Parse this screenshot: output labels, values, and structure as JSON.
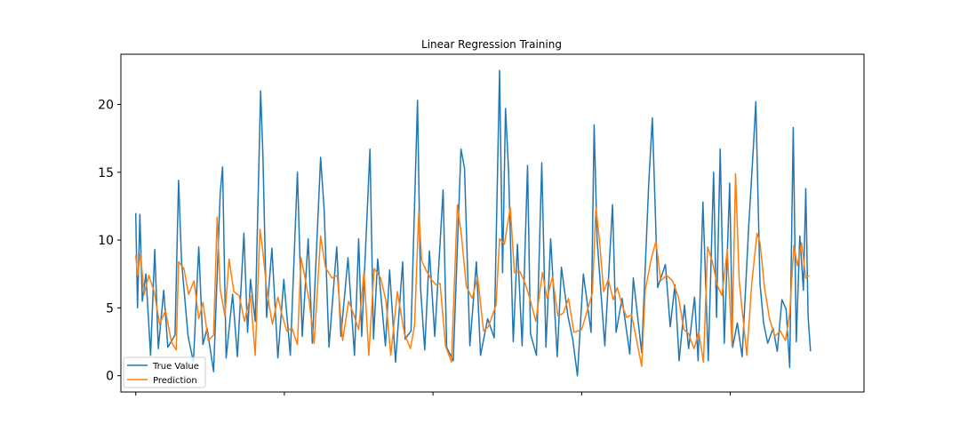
{
  "chart_data": {
    "type": "line",
    "title": "Linear Regression Training",
    "xlabel": "",
    "ylabel": "",
    "xlim": [
      -25,
      1225
    ],
    "ylim": [
      -1.2,
      23.7
    ],
    "yticks": [
      0,
      5,
      10,
      15,
      20
    ],
    "yticklabels": [
      "0",
      "5",
      "10",
      "15",
      "20"
    ],
    "xticks": [
      0,
      250,
      500,
      750,
      1000
    ],
    "xticklabels": [
      "",
      "",
      "",
      "",
      ""
    ],
    "grid": false,
    "legend_position": "lower-left",
    "series": [
      {
        "name": "True Value",
        "color": "#1f77b4",
        "keypoints": [
          [
            0,
            12.0
          ],
          [
            3,
            5.0
          ],
          [
            7,
            11.9
          ],
          [
            11,
            5.5
          ],
          [
            17,
            7.5
          ],
          [
            25,
            1.5
          ],
          [
            32,
            9.3
          ],
          [
            38,
            2.0
          ],
          [
            47,
            6.3
          ],
          [
            54,
            2.1
          ],
          [
            66,
            3.0
          ],
          [
            72,
            14.4
          ],
          [
            77,
            8.5
          ],
          [
            88,
            2.9
          ],
          [
            97,
            1.0
          ],
          [
            106,
            9.5
          ],
          [
            113,
            2.3
          ],
          [
            120,
            3.5
          ],
          [
            131,
            0.3
          ],
          [
            142,
            13.4
          ],
          [
            146,
            15.4
          ],
          [
            152,
            1.3
          ],
          [
            163,
            6.0
          ],
          [
            171,
            1.4
          ],
          [
            182,
            10.5
          ],
          [
            188,
            3.2
          ],
          [
            193,
            7.1
          ],
          [
            201,
            4.0
          ],
          [
            210,
            21.0
          ],
          [
            214,
            16.2
          ],
          [
            220,
            4.3
          ],
          [
            229,
            9.4
          ],
          [
            239,
            1.3
          ],
          [
            249,
            7.1
          ],
          [
            260,
            1.5
          ],
          [
            272,
            15.0
          ],
          [
            280,
            2.9
          ],
          [
            290,
            10.1
          ],
          [
            297,
            2.4
          ],
          [
            311,
            16.1
          ],
          [
            317,
            12.2
          ],
          [
            325,
            2.1
          ],
          [
            338,
            9.5
          ],
          [
            345,
            2.9
          ],
          [
            357,
            8.7
          ],
          [
            368,
            1.5
          ],
          [
            375,
            10.1
          ],
          [
            380,
            2.9
          ],
          [
            394,
            16.7
          ],
          [
            400,
            2.7
          ],
          [
            407,
            8.6
          ],
          [
            420,
            2.2
          ],
          [
            427,
            7.8
          ],
          [
            437,
            1.0
          ],
          [
            449,
            8.4
          ],
          [
            453,
            2.7
          ],
          [
            463,
            3.3
          ],
          [
            474,
            20.3
          ],
          [
            479,
            6.5
          ],
          [
            486,
            1.9
          ],
          [
            494,
            9.2
          ],
          [
            503,
            2.9
          ],
          [
            517,
            13.7
          ],
          [
            523,
            2.1
          ],
          [
            534,
            1.1
          ],
          [
            547,
            16.7
          ],
          [
            553,
            15.3
          ],
          [
            562,
            2.2
          ],
          [
            573,
            8.4
          ],
          [
            580,
            1.5
          ],
          [
            592,
            4.2
          ],
          [
            603,
            2.8
          ],
          [
            612,
            22.5
          ],
          [
            617,
            7.6
          ],
          [
            622,
            19.7
          ],
          [
            627,
            15.2
          ],
          [
            635,
            2.5
          ],
          [
            642,
            9.7
          ],
          [
            650,
            2.2
          ],
          [
            659,
            15.5
          ],
          [
            664,
            3.1
          ],
          [
            674,
            1.5
          ],
          [
            683,
            15.7
          ],
          [
            690,
            2.1
          ],
          [
            698,
            10.1
          ],
          [
            709,
            1.4
          ],
          [
            716,
            8.0
          ],
          [
            727,
            4.4
          ],
          [
            735,
            2.7
          ],
          [
            743,
            0.0
          ],
          [
            753,
            7.5
          ],
          [
            766,
            3.2
          ],
          [
            771,
            18.5
          ],
          [
            776,
            10.1
          ],
          [
            789,
            2.2
          ],
          [
            802,
            12.6
          ],
          [
            808,
            3.2
          ],
          [
            818,
            5.7
          ],
          [
            831,
            1.6
          ],
          [
            837,
            7.2
          ],
          [
            851,
            1.7
          ],
          [
            863,
            14.3
          ],
          [
            869,
            19.0
          ],
          [
            878,
            6.5
          ],
          [
            891,
            8.2
          ],
          [
            899,
            3.6
          ],
          [
            907,
            6.7
          ],
          [
            914,
            1.1
          ],
          [
            923,
            5.2
          ],
          [
            930,
            2.0
          ],
          [
            940,
            5.8
          ],
          [
            946,
            1.1
          ],
          [
            954,
            12.8
          ],
          [
            963,
            1.1
          ],
          [
            972,
            15.0
          ],
          [
            977,
            4.3
          ],
          [
            983,
            16.7
          ],
          [
            990,
            2.4
          ],
          [
            999,
            14.2
          ],
          [
            1004,
            2.1
          ],
          [
            1012,
            3.9
          ],
          [
            1020,
            1.4
          ],
          [
            1031,
            11.0
          ],
          [
            1039,
            16.9
          ],
          [
            1043,
            20.2
          ],
          [
            1050,
            6.8
          ],
          [
            1056,
            3.9
          ],
          [
            1063,
            2.4
          ],
          [
            1072,
            3.5
          ],
          [
            1079,
            1.8
          ],
          [
            1087,
            5.6
          ],
          [
            1094,
            4.9
          ],
          [
            1100,
            0.6
          ],
          [
            1106,
            18.3
          ],
          [
            1111,
            2.5
          ],
          [
            1117,
            10.3
          ],
          [
            1123,
            6.3
          ],
          [
            1127,
            13.8
          ],
          [
            1131,
            4.4
          ],
          [
            1135,
            1.8
          ]
        ]
      },
      {
        "name": "Prediction",
        "color": "#ff7f0e",
        "keypoints": [
          [
            0,
            8.9
          ],
          [
            3,
            7.4
          ],
          [
            8,
            9.0
          ],
          [
            14,
            6.0
          ],
          [
            22,
            7.4
          ],
          [
            31,
            6.2
          ],
          [
            40,
            3.8
          ],
          [
            50,
            4.8
          ],
          [
            60,
            2.5
          ],
          [
            68,
            1.9
          ],
          [
            72,
            8.4
          ],
          [
            81,
            7.9
          ],
          [
            89,
            6.0
          ],
          [
            98,
            7.0
          ],
          [
            106,
            4.2
          ],
          [
            113,
            5.4
          ],
          [
            122,
            2.6
          ],
          [
            131,
            3.0
          ],
          [
            137,
            11.7
          ],
          [
            142,
            6.4
          ],
          [
            150,
            4.4
          ],
          [
            157,
            8.6
          ],
          [
            165,
            6.2
          ],
          [
            174,
            5.9
          ],
          [
            183,
            4.0
          ],
          [
            193,
            5.9
          ],
          [
            201,
            1.5
          ],
          [
            209,
            10.8
          ],
          [
            214,
            9.1
          ],
          [
            221,
            6.1
          ],
          [
            230,
            3.8
          ],
          [
            239,
            5.8
          ],
          [
            246,
            4.5
          ],
          [
            254,
            3.3
          ],
          [
            263,
            3.5
          ],
          [
            272,
            2.3
          ],
          [
            278,
            8.7
          ],
          [
            284,
            7.4
          ],
          [
            292,
            5.4
          ],
          [
            300,
            2.4
          ],
          [
            311,
            10.3
          ],
          [
            319,
            8.0
          ],
          [
            330,
            7.2
          ],
          [
            339,
            7.4
          ],
          [
            348,
            2.6
          ],
          [
            358,
            5.5
          ],
          [
            366,
            4.6
          ],
          [
            375,
            3.4
          ],
          [
            384,
            7.7
          ],
          [
            392,
            1.5
          ],
          [
            401,
            7.9
          ],
          [
            412,
            7.2
          ],
          [
            421,
            5.5
          ],
          [
            429,
            1.5
          ],
          [
            440,
            6.2
          ],
          [
            452,
            3.1
          ],
          [
            462,
            2.0
          ],
          [
            469,
            3.7
          ],
          [
            476,
            12.1
          ],
          [
            481,
            8.5
          ],
          [
            488,
            7.8
          ],
          [
            497,
            7.1
          ],
          [
            505,
            6.7
          ],
          [
            512,
            6.8
          ],
          [
            521,
            2.2
          ],
          [
            531,
            1.0
          ],
          [
            541,
            12.6
          ],
          [
            548,
            10.3
          ],
          [
            556,
            6.6
          ],
          [
            566,
            5.7
          ],
          [
            575,
            7.3
          ],
          [
            585,
            3.3
          ],
          [
            593,
            3.6
          ],
          [
            606,
            5.2
          ],
          [
            612,
            10.1
          ],
          [
            620,
            9.7
          ],
          [
            630,
            12.4
          ],
          [
            637,
            7.6
          ],
          [
            646,
            7.7
          ],
          [
            655,
            6.8
          ],
          [
            663,
            5.7
          ],
          [
            673,
            4.0
          ],
          [
            684,
            7.6
          ],
          [
            692,
            5.7
          ],
          [
            701,
            7.3
          ],
          [
            710,
            4.4
          ],
          [
            719,
            4.6
          ],
          [
            728,
            5.7
          ],
          [
            737,
            3.2
          ],
          [
            750,
            3.4
          ],
          [
            759,
            4.7
          ],
          [
            768,
            6.1
          ],
          [
            774,
            12.4
          ],
          [
            780,
            10.0
          ],
          [
            787,
            6.2
          ],
          [
            795,
            7.1
          ],
          [
            803,
            5.6
          ],
          [
            810,
            6.5
          ],
          [
            818,
            5.2
          ],
          [
            826,
            4.3
          ],
          [
            834,
            4.5
          ],
          [
            843,
            2.5
          ],
          [
            851,
            0.7
          ],
          [
            857,
            6.3
          ],
          [
            867,
            8.6
          ],
          [
            875,
            9.9
          ],
          [
            883,
            7.0
          ],
          [
            893,
            7.4
          ],
          [
            903,
            7.0
          ],
          [
            913,
            5.8
          ],
          [
            922,
            3.4
          ],
          [
            930,
            3.1
          ],
          [
            939,
            2.0
          ],
          [
            947,
            3.2
          ],
          [
            955,
            1.0
          ],
          [
            962,
            9.5
          ],
          [
            970,
            8.4
          ],
          [
            978,
            6.7
          ],
          [
            986,
            5.9
          ],
          [
            995,
            9.3
          ],
          [
            1003,
            2.2
          ],
          [
            1009,
            14.9
          ],
          [
            1015,
            7.0
          ],
          [
            1023,
            3.6
          ],
          [
            1028,
            1.5
          ],
          [
            1036,
            6.7
          ],
          [
            1045,
            10.5
          ],
          [
            1050,
            9.8
          ],
          [
            1058,
            6.4
          ],
          [
            1066,
            4.2
          ],
          [
            1075,
            2.9
          ],
          [
            1084,
            3.3
          ],
          [
            1093,
            2.6
          ],
          [
            1100,
            4.6
          ],
          [
            1107,
            9.6
          ],
          [
            1113,
            8.1
          ],
          [
            1120,
            9.8
          ],
          [
            1127,
            7.2
          ],
          [
            1133,
            7.4
          ]
        ]
      }
    ]
  }
}
